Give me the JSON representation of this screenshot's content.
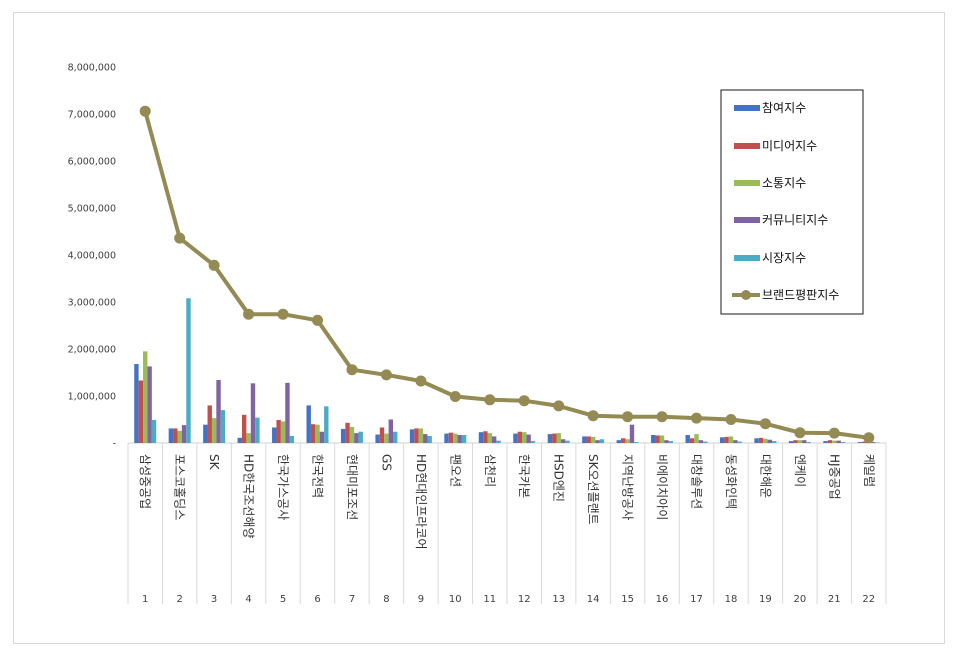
{
  "chart_data": {
    "type": "bar",
    "ylim": [
      0,
      8000000
    ],
    "yticks": [
      0,
      1000000,
      2000000,
      3000000,
      4000000,
      5000000,
      6000000,
      7000000,
      8000000
    ],
    "ytick_labels": [
      "-",
      "1,000,000",
      "2,000,000",
      "3,000,000",
      "4,000,000",
      "5,000,000",
      "6,000,000",
      "7,000,000",
      "8,000,000"
    ],
    "legend_position": "top-right",
    "ranks": [
      "1",
      "2",
      "3",
      "4",
      "5",
      "6",
      "7",
      "8",
      "9",
      "10",
      "11",
      "12",
      "13",
      "14",
      "15",
      "16",
      "17",
      "18",
      "19",
      "20",
      "21",
      "22"
    ],
    "categories": [
      "삼성중공업",
      "포스코홀딩스",
      "SK",
      "HD한국조선해양",
      "한국가스공사",
      "한국전력",
      "현대미포조선",
      "GS",
      "HD현대인프라코어",
      "팬오션",
      "삼천리",
      "한국카본",
      "HSD엔진",
      "SK오션플랜트",
      "지역난방공사",
      "비에이치아이",
      "대창솔루션",
      "동성화인텍",
      "대한해운",
      "엔케이",
      "HJ중공업",
      "케일럼"
    ],
    "series": [
      {
        "name": "참여지수",
        "color": "#4472C4",
        "values": [
          1680000,
          310000,
          390000,
          110000,
          330000,
          800000,
          300000,
          180000,
          290000,
          200000,
          230000,
          200000,
          190000,
          140000,
          60000,
          170000,
          170000,
          120000,
          100000,
          40000,
          40000,
          20000
        ]
      },
      {
        "name": "미디어지수",
        "color": "#C0504D",
        "values": [
          1330000,
          310000,
          800000,
          600000,
          490000,
          400000,
          430000,
          330000,
          310000,
          220000,
          250000,
          240000,
          200000,
          140000,
          100000,
          160000,
          100000,
          130000,
          110000,
          60000,
          60000,
          30000
        ]
      },
      {
        "name": "소통지수",
        "color": "#9BBB59",
        "values": [
          1950000,
          260000,
          530000,
          210000,
          460000,
          390000,
          340000,
          200000,
          310000,
          200000,
          210000,
          230000,
          210000,
          130000,
          80000,
          160000,
          190000,
          140000,
          90000,
          60000,
          50000,
          20000
        ]
      },
      {
        "name": "커뮤니티지수",
        "color": "#8064A2",
        "values": [
          1630000,
          380000,
          1340000,
          1270000,
          1280000,
          240000,
          210000,
          500000,
          190000,
          170000,
          140000,
          180000,
          80000,
          60000,
          390000,
          60000,
          60000,
          60000,
          70000,
          60000,
          50000,
          20000
        ]
      },
      {
        "name": "시장지수",
        "color": "#4BACC6",
        "values": [
          490000,
          3080000,
          700000,
          540000,
          150000,
          780000,
          240000,
          240000,
          150000,
          170000,
          50000,
          40000,
          50000,
          80000,
          20000,
          40000,
          30000,
          30000,
          40000,
          20000,
          20000,
          10000
        ]
      }
    ],
    "line": {
      "name": "브랜드평판지수",
      "color": "#948A54",
      "values": [
        7060000,
        4360000,
        3780000,
        2740000,
        2740000,
        2610000,
        1560000,
        1450000,
        1320000,
        990000,
        920000,
        900000,
        790000,
        580000,
        560000,
        560000,
        530000,
        500000,
        410000,
        220000,
        210000,
        110000
      ]
    }
  }
}
